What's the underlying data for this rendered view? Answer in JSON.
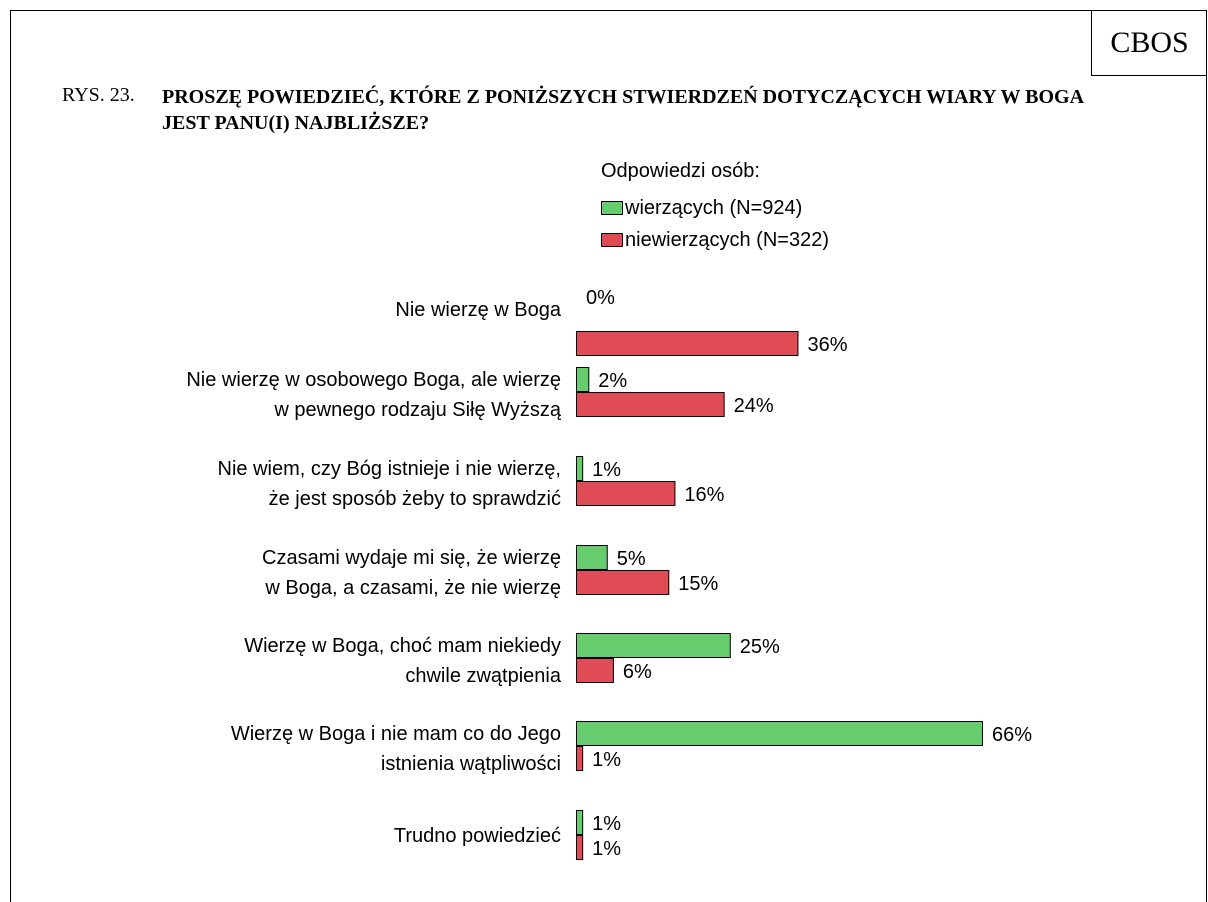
{
  "brand": "CBOS",
  "figure_number": "RYS. 23.",
  "figure_title": "PROSZĘ POWIEDZIEĆ, KTÓRE Z PONIŻSZYCH STWIERDZEŃ DOTYCZĄCYCH WIARY W BOGA JEST PANU(I) NAJBLIŻSZE?",
  "legend": {
    "heading": "Odpowiedzi osób:",
    "items": [
      {
        "label": "wierzących (N=924)",
        "color": "#66cc6e"
      },
      {
        "label": "niewierzących (N=322)",
        "color": "#e04c56"
      }
    ]
  },
  "chart_data": {
    "type": "bar",
    "orientation": "horizontal",
    "categories": [
      [
        "Nie wierzę w Boga"
      ],
      [
        "Nie wierzę w osobowego Boga, ale wierzę",
        "w pewnego rodzaju Siłę Wyższą"
      ],
      [
        "Nie wiem, czy Bóg istnieje i nie wierzę,",
        "że jest sposób żeby to sprawdzić"
      ],
      [
        "Czasami wydaje mi się, że wierzę",
        "w Boga, a czasami, że nie wierzę"
      ],
      [
        "Wierzę w Boga, choć mam niekiedy",
        "chwile zwątpienia"
      ],
      [
        "Wierzę w Boga i nie mam co do Jego",
        "istnienia wątpliwości"
      ],
      [
        "Trudno powiedzieć"
      ]
    ],
    "series": [
      {
        "name": "wierzących (N=924)",
        "color": "#66cc6e",
        "values": [
          0,
          2,
          1,
          5,
          25,
          66,
          1
        ]
      },
      {
        "name": "niewierzących (N=322)",
        "color": "#e04c56",
        "values": [
          36,
          24,
          16,
          15,
          6,
          1,
          1
        ]
      }
    ],
    "value_suffix": "%",
    "xlim": [
      0,
      70
    ],
    "grid": false,
    "legend_position": "top"
  }
}
